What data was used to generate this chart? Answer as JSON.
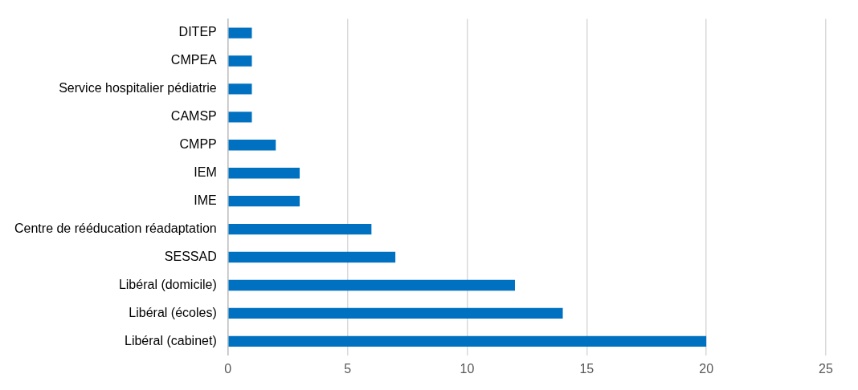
{
  "chart_data": {
    "type": "bar",
    "orientation": "horizontal",
    "categories": [
      "DITEP",
      "CMPEA",
      "Service hospitalier pédiatrie",
      "CAMSP",
      "CMPP",
      "IEM",
      "IME",
      "Centre de rééducation réadaptation",
      "SESSAD",
      "Libéral (domicile)",
      "Libéral (écoles)",
      "Libéral (cabinet)"
    ],
    "values": [
      1,
      1,
      1,
      1,
      2,
      3,
      3,
      6,
      7,
      12,
      14,
      20
    ],
    "color": "#0070c0",
    "xlim": [
      0,
      25
    ],
    "xticks": [
      0,
      5,
      10,
      15,
      20,
      25
    ],
    "grid": "x",
    "legend": false
  }
}
